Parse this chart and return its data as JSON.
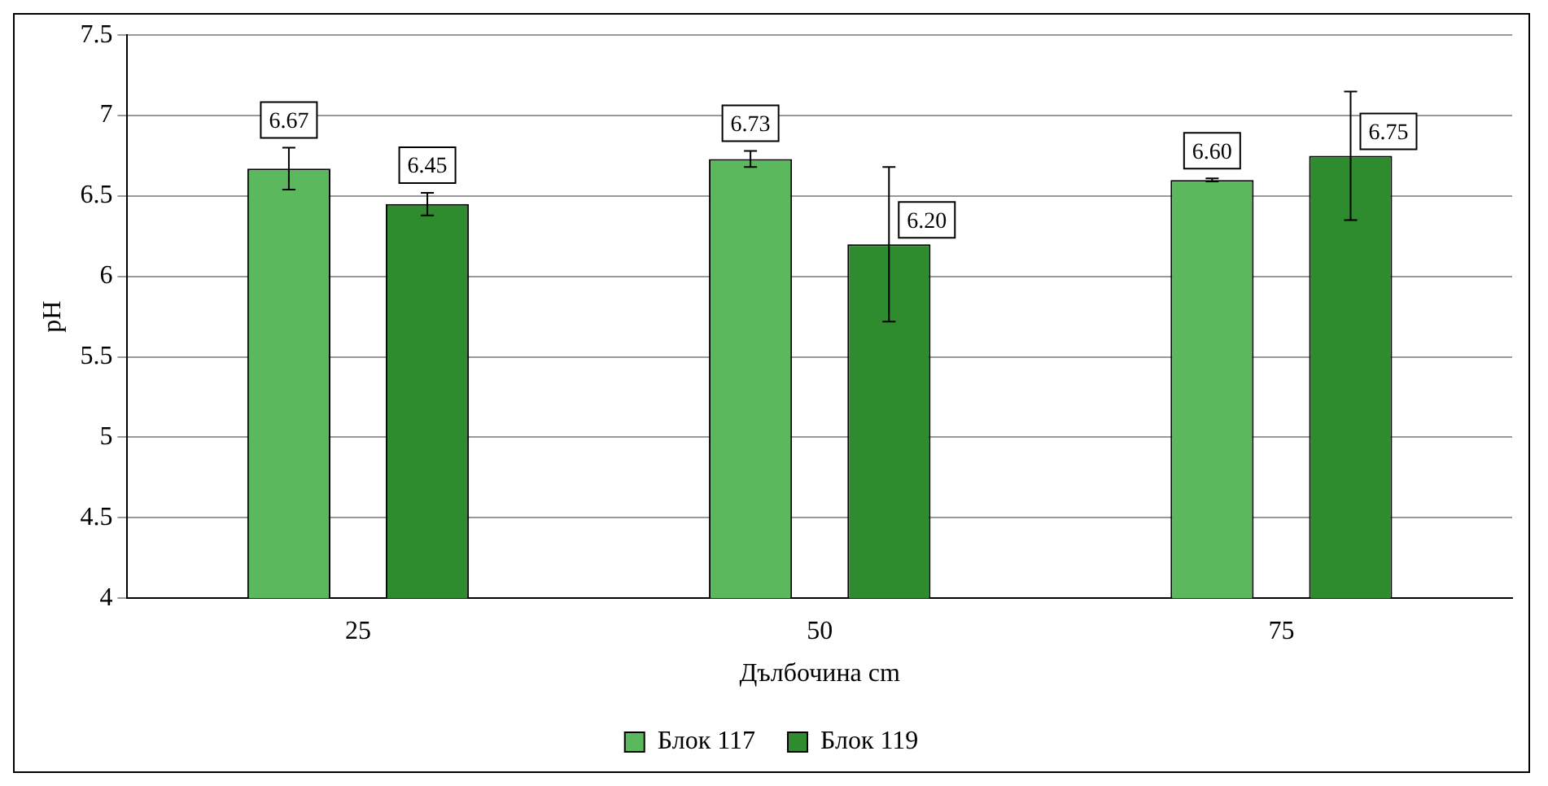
{
  "chart_data": {
    "type": "bar",
    "xlabel": "Дълбочина cm",
    "ylabel": "pH",
    "categories": [
      "25",
      "50",
      "75"
    ],
    "series": [
      {
        "name": "Блок 117",
        "color": "#5cb85c",
        "values": [
          6.67,
          6.73,
          6.6
        ],
        "errors": [
          0.13,
          0.05,
          0.01
        ],
        "value_labels": [
          "6.67",
          "6.73",
          "6.60"
        ]
      },
      {
        "name": "Блок 119",
        "color": "#2e8b2e",
        "values": [
          6.45,
          6.2,
          6.75
        ],
        "errors": [
          0.07,
          0.48,
          0.4
        ],
        "value_labels": [
          "6.45",
          "6.20",
          "6.75"
        ]
      }
    ],
    "ylim": [
      4,
      7.5
    ],
    "yticks": [
      4,
      4.5,
      5,
      5.5,
      6,
      6.5,
      7,
      7.5
    ],
    "grid": "y",
    "legend": "bottom"
  }
}
